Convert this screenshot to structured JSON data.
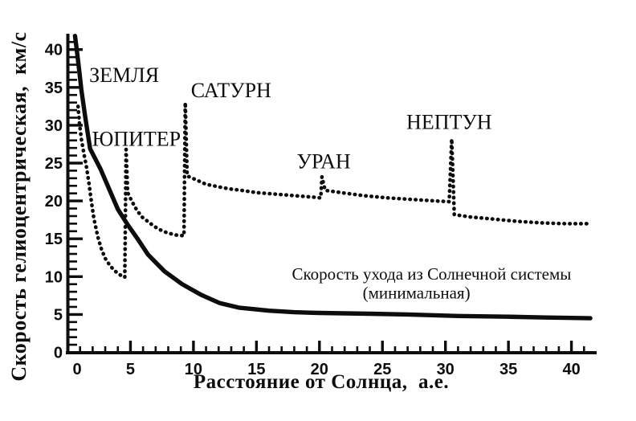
{
  "figure": {
    "background": "#ffffff",
    "ink": "#0d0d0d"
  },
  "chart_data": {
    "type": "line",
    "title": "",
    "xlabel": "Расстояние от Солнца,  а.е.",
    "ylabel": "Скорость гелиоцентрическая,  км/с",
    "xlim": [
      0,
      42
    ],
    "ylim": [
      0,
      42
    ],
    "x_ticks_major": [
      0,
      5,
      10,
      15,
      20,
      25,
      30,
      35,
      40
    ],
    "y_ticks_major": [
      0,
      5,
      10,
      15,
      20,
      25,
      30,
      35,
      40
    ],
    "minor_tick_step": 1,
    "grid": false,
    "legend_position": "none",
    "series": [
      {
        "id": "escape-velocity-minimal",
        "style": "solid",
        "points": [
          [
            0.6,
            41.8
          ],
          [
            0.75,
            39.8
          ],
          [
            0.95,
            37.0
          ],
          [
            1.1,
            34.7
          ],
          [
            1.4,
            31.2
          ],
          [
            1.8,
            26.9
          ],
          [
            2.6,
            24.3
          ],
          [
            3.3,
            21.6
          ],
          [
            4.0,
            18.9
          ],
          [
            4.8,
            16.8
          ],
          [
            5.6,
            14.9
          ],
          [
            6.4,
            12.9
          ],
          [
            7.7,
            10.7
          ],
          [
            9.1,
            9.0
          ],
          [
            10.6,
            7.6
          ],
          [
            12.1,
            6.5
          ],
          [
            13.6,
            5.9
          ],
          [
            16.0,
            5.5
          ],
          [
            18.0,
            5.3
          ],
          [
            20.0,
            5.2
          ],
          [
            24.0,
            5.1
          ],
          [
            27.0,
            5.0
          ],
          [
            31.0,
            4.8
          ],
          [
            35.0,
            4.7
          ],
          [
            38.0,
            4.6
          ],
          [
            41.5,
            4.5
          ]
        ]
      },
      {
        "id": "spacecraft-heliocentric-velocity",
        "style": "dotted",
        "points": [
          [
            0.84,
            32.5
          ],
          [
            0.95,
            30.3
          ],
          [
            1.1,
            28.2
          ],
          [
            1.3,
            26.3
          ],
          [
            1.5,
            24.6
          ],
          [
            1.7,
            22.4
          ],
          [
            1.9,
            19.9
          ],
          [
            2.1,
            17.7
          ],
          [
            2.4,
            15.3
          ],
          [
            2.7,
            13.6
          ],
          [
            3.0,
            12.4
          ],
          [
            3.4,
            11.4
          ],
          [
            3.8,
            10.7
          ],
          [
            4.2,
            10.2
          ],
          [
            4.55,
            9.9
          ],
          [
            4.65,
            26.8
          ],
          [
            4.78,
            21.1
          ],
          [
            5.1,
            20.0
          ],
          [
            5.5,
            18.8
          ],
          [
            5.9,
            17.9
          ],
          [
            6.6,
            17.0
          ],
          [
            7.2,
            16.3
          ],
          [
            7.9,
            15.8
          ],
          [
            8.6,
            15.5
          ],
          [
            9.25,
            15.4
          ],
          [
            9.35,
            33.0
          ],
          [
            9.5,
            23.3
          ],
          [
            10.2,
            22.8
          ],
          [
            11.0,
            22.2
          ],
          [
            11.9,
            21.9
          ],
          [
            12.8,
            21.6
          ],
          [
            13.8,
            21.4
          ],
          [
            15.0,
            21.1
          ],
          [
            16.5,
            20.9
          ],
          [
            18.0,
            20.7
          ],
          [
            19.5,
            20.5
          ],
          [
            20.1,
            20.4
          ],
          [
            20.2,
            23.2
          ],
          [
            20.45,
            21.4
          ],
          [
            21.7,
            21.1
          ],
          [
            23.5,
            20.7
          ],
          [
            25.4,
            20.4
          ],
          [
            27.3,
            20.2
          ],
          [
            29.2,
            20.0
          ],
          [
            30.3,
            19.9
          ],
          [
            30.5,
            28.2
          ],
          [
            30.7,
            18.2
          ],
          [
            31.9,
            17.9
          ],
          [
            33.8,
            17.6
          ],
          [
            35.7,
            17.3
          ],
          [
            37.6,
            17.1
          ],
          [
            39.5,
            17.0
          ],
          [
            41.4,
            17.0
          ]
        ]
      }
    ],
    "planet_labels": [
      {
        "text": "ЗЕМЛЯ",
        "x": 1.73,
        "y": 35.7
      },
      {
        "text": "ЮПИТЕР",
        "x": 1.95,
        "y": 27.3
      },
      {
        "text": "САТУРН",
        "x": 9.8,
        "y": 33.7
      },
      {
        "text": "УРАН",
        "x": 18.2,
        "y": 24.3
      },
      {
        "text": "НЕПТУН",
        "x": 26.9,
        "y": 29.5
      }
    ],
    "annotation": {
      "lines": [
        {
          "text": "Скорость ухода из Солнечной системы",
          "x": 28.9,
          "y": 9.6
        },
        {
          "text": "(минимальная)",
          "x": 27.7,
          "y": 7.1
        }
      ]
    }
  }
}
